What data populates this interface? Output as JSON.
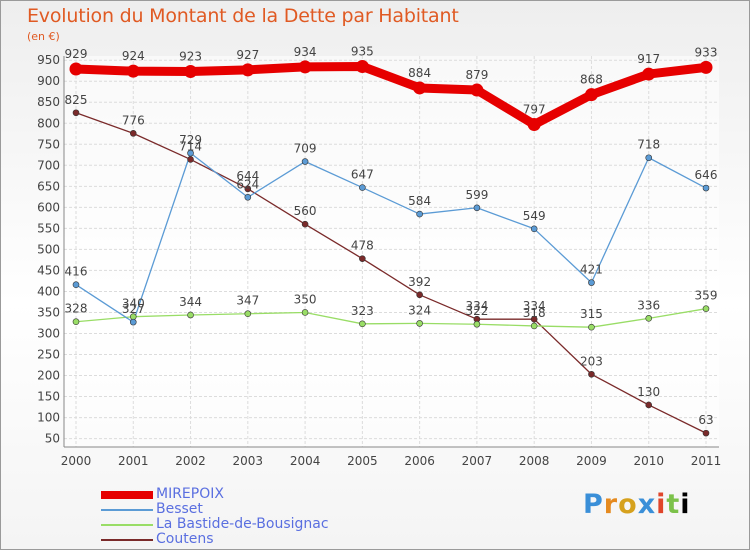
{
  "chart_data": {
    "type": "line",
    "title": "Evolution du Montant de la Dette par Habitant",
    "unit": "(en €)",
    "categories": [
      "2000",
      "2001",
      "2002",
      "2003",
      "2004",
      "2005",
      "2006",
      "2007",
      "2008",
      "2009",
      "2010",
      "2011"
    ],
    "y_ticks": [
      50,
      100,
      150,
      200,
      250,
      300,
      350,
      400,
      450,
      500,
      550,
      600,
      650,
      700,
      750,
      800,
      850,
      900,
      950
    ],
    "ylim": [
      30,
      960
    ],
    "grid": true,
    "legend_position": "bottom-left",
    "series": [
      {
        "name": "MIREPOIX",
        "color": "#e60000",
        "values": [
          929,
          924,
          923,
          927,
          934,
          935,
          884,
          879,
          797,
          868,
          917,
          933
        ]
      },
      {
        "name": "Besset",
        "color": "#5b9bd5",
        "values": [
          416,
          327,
          729,
          624,
          709,
          647,
          584,
          599,
          549,
          421,
          718,
          646
        ]
      },
      {
        "name": "La Bastide-de-Bousignac",
        "color": "#99dd66",
        "values": [
          328,
          340,
          344,
          347,
          350,
          323,
          324,
          322,
          318,
          315,
          336,
          359
        ]
      },
      {
        "name": "Coutens",
        "color": "#7a2a2a",
        "values": [
          825,
          776,
          714,
          644,
          560,
          478,
          392,
          334,
          334,
          203,
          130,
          63
        ]
      }
    ],
    "point_labels": [
      [
        "929",
        "924",
        "923",
        "927",
        "934",
        "935",
        "884",
        "879",
        "797",
        "868",
        "917",
        "933"
      ],
      [
        "416",
        "327",
        "729",
        "624",
        "709",
        "647",
        "584",
        "599",
        "549",
        "421",
        "718",
        "646"
      ],
      [
        "328",
        "340",
        "344",
        "347",
        "350",
        "323",
        "324",
        "322",
        "318",
        "315",
        "336",
        "359"
      ],
      [
        "825",
        "776",
        "714",
        "644",
        "560",
        "478",
        "392",
        "334",
        "334",
        "203",
        "130",
        "63"
      ]
    ]
  },
  "logo": {
    "letters": [
      "P",
      "r",
      "o",
      "x",
      "i",
      "t",
      "i"
    ]
  }
}
